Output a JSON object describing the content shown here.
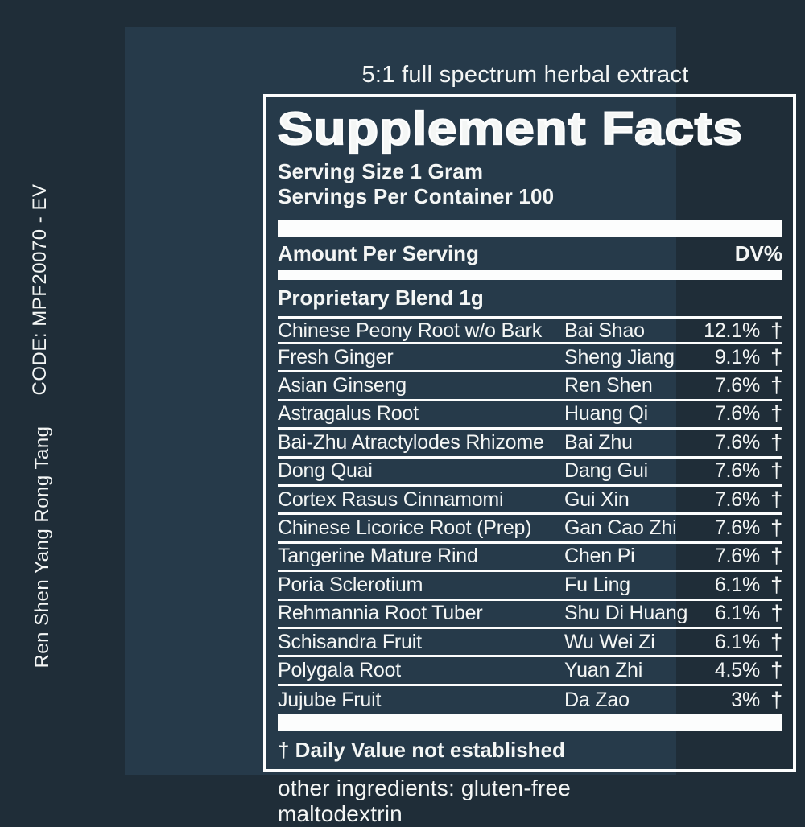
{
  "colors": {
    "outer_bg": "#1f2d38",
    "label_bg": "#263a4a",
    "text_color": "#f4f6f5",
    "line_color": "#fcfdfd"
  },
  "side_labels": {
    "code": "CODE: MPF20070 - EV",
    "product": "Ren Shen Yang Rong Tang"
  },
  "header": {
    "tagline": "5:1 full spectrum herbal extract"
  },
  "panel": {
    "title": "Supplement Facts",
    "serving_size": "Serving Size 1 Gram",
    "servings_per_container": "Servings Per Container 100",
    "amount_per_serving": "Amount Per Serving",
    "dv_header": "DV%",
    "blend_title": "Proprietary Blend 1g",
    "dagger_symbol": "†",
    "rows": [
      {
        "name": "Chinese Peony Root w/o Bark",
        "pinyin": "Bai Shao",
        "dv": "12.1%"
      },
      {
        "name": "Fresh Ginger",
        "pinyin": "Sheng Jiang",
        "dv": "9.1%"
      },
      {
        "name": "Asian Ginseng",
        "pinyin": "Ren Shen",
        "dv": "7.6%"
      },
      {
        "name": "Astragalus Root",
        "pinyin": "Huang Qi",
        "dv": "7.6%"
      },
      {
        "name": "Bai-Zhu Atractylodes Rhizome",
        "pinyin": "Bai Zhu",
        "dv": "7.6%"
      },
      {
        "name": "Dong Quai",
        "pinyin": "Dang Gui",
        "dv": "7.6%"
      },
      {
        "name": "Cortex Rasus Cinnamomi",
        "pinyin": "Gui Xin",
        "dv": "7.6%"
      },
      {
        "name": "Chinese Licorice Root (Prep)",
        "pinyin": "Gan Cao Zhi",
        "dv": "7.6%"
      },
      {
        "name": "Tangerine Mature Rind",
        "pinyin": "Chen Pi",
        "dv": "7.6%"
      },
      {
        "name": "Poria Sclerotium",
        "pinyin": "Fu Ling",
        "dv": "6.1%"
      },
      {
        "name": "Rehmannia Root Tuber",
        "pinyin": "Shu Di Huang",
        "dv": "6.1%"
      },
      {
        "name": "Schisandra Fruit",
        "pinyin": "Wu Wei Zi",
        "dv": "6.1%"
      },
      {
        "name": "Polygala Root",
        "pinyin": "Yuan Zhi",
        "dv": "4.5%"
      },
      {
        "name": "Jujube Fruit",
        "pinyin": "Da Zao",
        "dv": "3%"
      }
    ],
    "footnote": "† Daily Value not established"
  },
  "footer": {
    "other_ingredients": "other ingredients: gluten-free maltodextrin"
  }
}
